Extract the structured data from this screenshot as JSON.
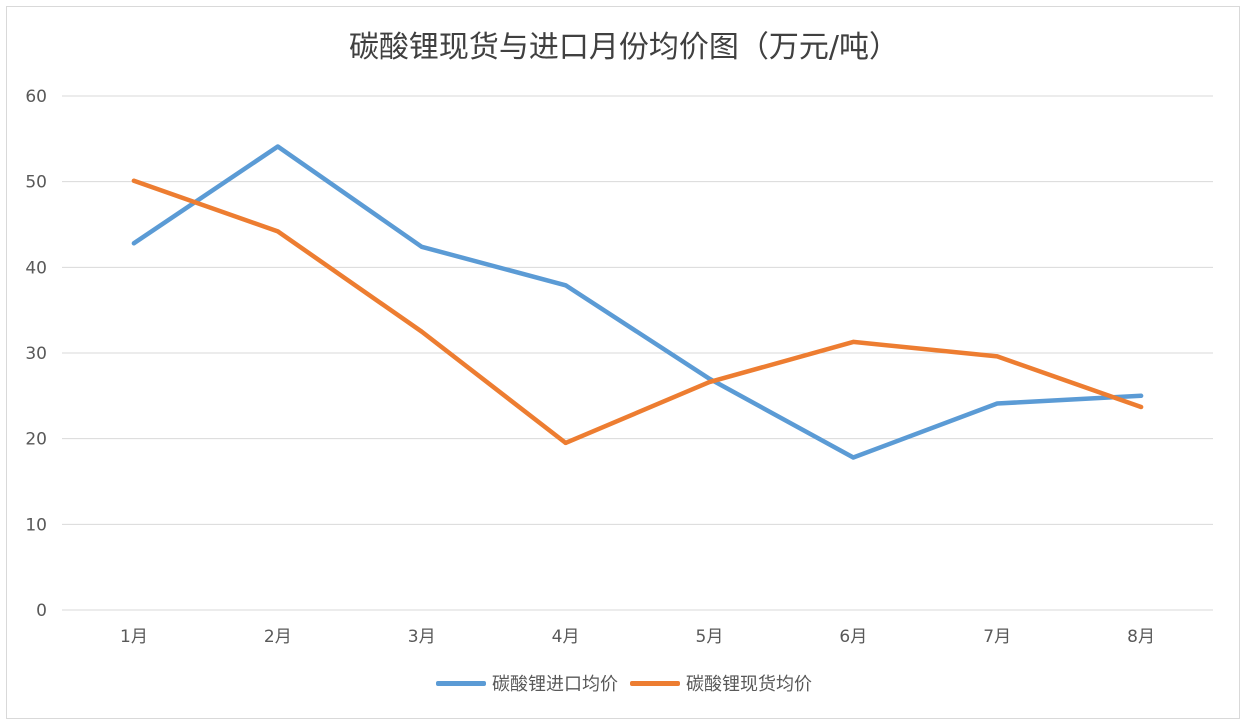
{
  "chart_data": {
    "type": "line",
    "title": "碳酸锂现货与进口月份均价图（万元/吨）",
    "categories": [
      "1月",
      "2月",
      "3月",
      "4月",
      "5月",
      "6月",
      "7月",
      "8月"
    ],
    "series": [
      {
        "name": "碳酸锂进口均价",
        "color": "#5b9bd5",
        "values": [
          42.8,
          54.1,
          42.4,
          37.9,
          27.0,
          17.8,
          24.1,
          25.0
        ]
      },
      {
        "name": "碳酸锂现货均价",
        "color": "#ed7d31",
        "values": [
          50.1,
          44.2,
          32.5,
          19.5,
          26.6,
          31.3,
          29.6,
          23.7
        ]
      }
    ],
    "yticks": [
      0,
      10,
      20,
      30,
      40,
      50,
      60
    ],
    "ylim": [
      0,
      60
    ],
    "grid": true,
    "legend": "bottom"
  }
}
